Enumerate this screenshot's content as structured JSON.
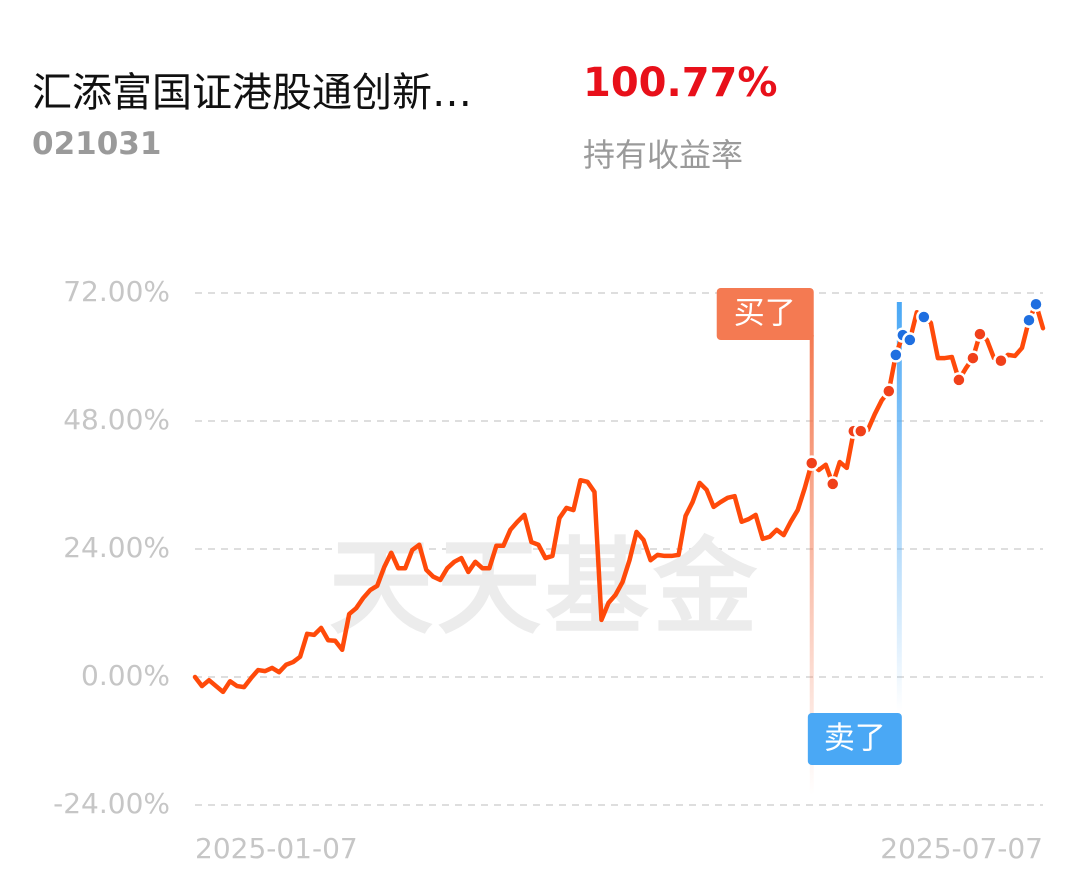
{
  "header": {
    "title": "汇添富国证港股通创新…",
    "return": "100.77%",
    "code": "021031",
    "return_label": "持有收益率"
  },
  "chart_data": {
    "type": "line",
    "watermark": "天天基金",
    "grid": true,
    "ylim": [
      -24,
      72
    ],
    "yticks": [
      {
        "value": 72,
        "label": "72.00%"
      },
      {
        "value": 48,
        "label": "48.00%"
      },
      {
        "value": 24,
        "label": "24.00%"
      },
      {
        "value": 0,
        "label": "0.00%"
      },
      {
        "value": -24,
        "label": "-24.00%"
      }
    ],
    "categories": [
      "2025-01-07",
      null,
      null,
      null,
      null,
      null,
      null,
      null,
      null,
      null,
      null,
      null,
      null,
      null,
      null,
      null,
      null,
      null,
      null,
      null,
      null,
      null,
      null,
      null,
      null,
      null,
      null,
      null,
      null,
      null,
      null,
      null,
      null,
      null,
      null,
      null,
      null,
      null,
      null,
      null,
      null,
      null,
      null,
      null,
      null,
      null,
      null,
      null,
      null,
      null,
      null,
      null,
      null,
      null,
      null,
      null,
      null,
      null,
      null,
      null,
      null,
      null,
      null,
      null,
      null,
      null,
      null,
      null,
      null,
      null,
      null,
      null,
      null,
      null,
      null,
      null,
      null,
      null,
      null,
      null,
      null,
      null,
      null,
      null,
      null,
      null,
      null,
      null,
      null,
      null,
      null,
      null,
      null,
      null,
      null,
      null,
      null,
      null,
      null,
      null,
      null,
      null,
      null,
      null,
      null,
      null,
      null,
      null,
      null,
      null,
      null,
      null,
      null,
      null,
      null,
      null,
      null,
      null,
      null,
      null,
      null,
      "2025-07-07"
    ],
    "series": [
      {
        "style": "line",
        "color": "#ff4a0a",
        "values": [
          0,
          -1.7,
          -0.6,
          -1.7,
          -2.8,
          -0.8,
          -1.7,
          -1.9,
          -0.2,
          1.3,
          1.1,
          1.7,
          0.9,
          2.3,
          2.8,
          3.8,
          8.1,
          7.9,
          9.2,
          6.9,
          6.8,
          5.1,
          11.8,
          12.9,
          14.8,
          16.3,
          17.1,
          20.6,
          23.3,
          20.4,
          20.4,
          23.8,
          24.8,
          20.1,
          18.8,
          18.2,
          20.4,
          21.6,
          22.3,
          19.7,
          21.6,
          20.4,
          20.4,
          24.6,
          24.6,
          27.6,
          29.1,
          30.4,
          25.3,
          24.8,
          22.3,
          22.7,
          29.8,
          31.7,
          31.3,
          36.9,
          36.6,
          34.7,
          10.7,
          13.9,
          15.4,
          17.8,
          21.9,
          27.2,
          25.7,
          21.9,
          22.9,
          22.7,
          22.7,
          22.9,
          30.2,
          32.8,
          36.4,
          35.1,
          31.9,
          32.8,
          33.6,
          33.9,
          29.1,
          29.6,
          30.4,
          25.9,
          26.3,
          27.6,
          26.6,
          29.1,
          31.3,
          35.4,
          40.1,
          38.8,
          39.8,
          36.2,
          40.3,
          39.2,
          46.1,
          46.1,
          46.3,
          49.3,
          51.9,
          53.6,
          60.4,
          64.1,
          63.2,
          68.4,
          67.5,
          66.4,
          59.8,
          59.8,
          60.0,
          55.7,
          57.9,
          59.8,
          64.3,
          63.2,
          59.8,
          59.3,
          60.4,
          60.2,
          61.7,
          66.9,
          69.9,
          65.4
        ]
      },
      {
        "style": "markers",
        "name": "买了",
        "color": "#f0401a",
        "values": [
          null,
          null,
          null,
          null,
          null,
          null,
          null,
          null,
          null,
          null,
          null,
          null,
          null,
          null,
          null,
          null,
          null,
          null,
          null,
          null,
          null,
          null,
          null,
          null,
          null,
          null,
          null,
          null,
          null,
          null,
          null,
          null,
          null,
          null,
          null,
          null,
          null,
          null,
          null,
          null,
          null,
          null,
          null,
          null,
          null,
          null,
          null,
          null,
          null,
          null,
          null,
          null,
          null,
          null,
          null,
          null,
          null,
          null,
          null,
          null,
          null,
          null,
          null,
          null,
          null,
          null,
          null,
          null,
          null,
          null,
          null,
          null,
          null,
          null,
          null,
          null,
          null,
          null,
          null,
          null,
          null,
          null,
          null,
          null,
          null,
          null,
          null,
          null,
          40.1,
          null,
          null,
          36.2,
          null,
          null,
          46.1,
          46.1,
          null,
          null,
          null,
          53.6,
          null,
          null,
          null,
          null,
          null,
          null,
          null,
          null,
          null,
          55.7,
          null,
          59.8,
          64.3,
          null,
          null,
          59.3,
          null,
          null,
          null,
          null,
          null,
          null
        ]
      },
      {
        "style": "markers",
        "name": "卖了",
        "color": "#1f6fe0",
        "values": [
          null,
          null,
          null,
          null,
          null,
          null,
          null,
          null,
          null,
          null,
          null,
          null,
          null,
          null,
          null,
          null,
          null,
          null,
          null,
          null,
          null,
          null,
          null,
          null,
          null,
          null,
          null,
          null,
          null,
          null,
          null,
          null,
          null,
          null,
          null,
          null,
          null,
          null,
          null,
          null,
          null,
          null,
          null,
          null,
          null,
          null,
          null,
          null,
          null,
          null,
          null,
          null,
          null,
          null,
          null,
          null,
          null,
          null,
          null,
          null,
          null,
          null,
          null,
          null,
          null,
          null,
          null,
          null,
          null,
          null,
          null,
          null,
          null,
          null,
          null,
          null,
          null,
          null,
          null,
          null,
          null,
          null,
          null,
          null,
          null,
          null,
          null,
          null,
          null,
          null,
          null,
          null,
          null,
          null,
          null,
          null,
          null,
          null,
          null,
          null,
          60.4,
          64.1,
          63.2,
          null,
          67.5,
          null,
          null,
          null,
          null,
          null,
          null,
          null,
          null,
          null,
          null,
          null,
          null,
          null,
          null,
          66.9,
          69.9,
          null
        ]
      }
    ]
  }
}
